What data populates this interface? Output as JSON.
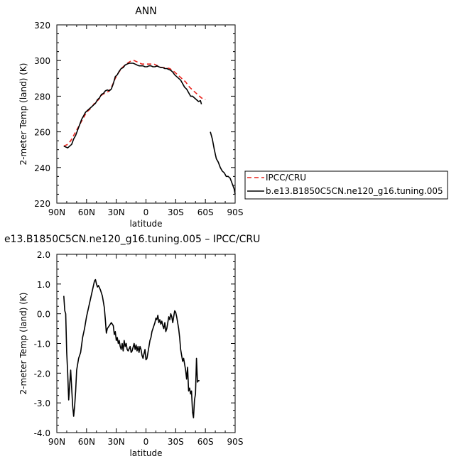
{
  "chart_data": [
    {
      "type": "line",
      "title": "ANN",
      "xlabel": "latitude",
      "ylabel": "2-meter Temp (land) (K)",
      "xlim": [
        90,
        -90
      ],
      "ylim": [
        220,
        320
      ],
      "x_tick_values": [
        90,
        60,
        30,
        0,
        -30,
        -60,
        -90
      ],
      "x_tick_labels": [
        "90N",
        "60N",
        "30N",
        "0",
        "30S",
        "60S",
        "90S"
      ],
      "y_tick_values": [
        220,
        240,
        260,
        280,
        300,
        320
      ],
      "y_tick_labels": [
        "220",
        "240",
        "260",
        "280",
        "300",
        "320"
      ],
      "legend_position": "bottom-right, outside plot",
      "series": [
        {
          "name": "IPCC/CRU",
          "color": "#e8201a",
          "dash": "dashed",
          "points": [
            [
              83,
              252
            ],
            [
              79,
              253
            ],
            [
              76,
              255
            ],
            [
              72,
              259
            ],
            [
              68,
              263
            ],
            [
              64,
              267
            ],
            [
              60,
              271
            ],
            [
              56,
              273
            ],
            [
              52,
              276
            ],
            [
              48,
              278
            ],
            [
              44,
              281
            ],
            [
              40,
              282
            ],
            [
              37,
              283
            ],
            [
              34,
              286
            ],
            [
              31,
              290
            ],
            [
              28,
              293
            ],
            [
              24,
              296
            ],
            [
              20,
              298
            ],
            [
              16,
              299.5
            ],
            [
              12,
              300
            ],
            [
              8,
              299
            ],
            [
              4,
              298
            ],
            [
              0,
              298
            ],
            [
              -4,
              298
            ],
            [
              -8,
              298
            ],
            [
              -12,
              297
            ],
            [
              -16,
              296
            ],
            [
              -20,
              296
            ],
            [
              -24,
              295.5
            ],
            [
              -28,
              294
            ],
            [
              -32,
              292
            ],
            [
              -36,
              290
            ],
            [
              -40,
              288
            ],
            [
              -44,
              285
            ],
            [
              -48,
              283
            ],
            [
              -52,
              281
            ],
            [
              -56,
              279
            ],
            [
              -60,
              278
            ]
          ]
        },
        {
          "name": "b.e13.B1850C5CN.ne120_g16.tuning.005",
          "color": "#000000",
          "dash": "solid",
          "segments": [
            [
              [
                83,
                252
              ],
              [
                81,
                251.5
              ],
              [
                79,
                251
              ],
              [
                77,
                252
              ],
              [
                75,
                253
              ],
              [
                73,
                256
              ],
              [
                71,
                258
              ],
              [
                69,
                261
              ],
              [
                67,
                264
              ],
              [
                65,
                267
              ],
              [
                63,
                269
              ],
              [
                61,
                271
              ],
              [
                59,
                272
              ],
              [
                57,
                273
              ],
              [
                55,
                274
              ],
              [
                53,
                275
              ],
              [
                51,
                276
              ],
              [
                49,
                278
              ],
              [
                47,
                279
              ],
              [
                45,
                281
              ],
              [
                43,
                281.5
              ],
              [
                41,
                283
              ],
              [
                39,
                283.5
              ],
              [
                37,
                283
              ],
              [
                35,
                284
              ],
              [
                33,
                287
              ],
              [
                31,
                291
              ],
              [
                29,
                292
              ],
              [
                27,
                294
              ],
              [
                25,
                295.5
              ],
              [
                23,
                296
              ],
              [
                21,
                297.5
              ],
              [
                19,
                298
              ],
              [
                17,
                298.5
              ],
              [
                15,
                298.5
              ],
              [
                13,
                298.5
              ],
              [
                11,
                298
              ],
              [
                9,
                297.5
              ],
              [
                7,
                297
              ],
              [
                5,
                297
              ],
              [
                3,
                297
              ],
              [
                1,
                296.5
              ],
              [
                -1,
                296.5
              ],
              [
                -3,
                297
              ],
              [
                -5,
                297
              ],
              [
                -7,
                296.5
              ],
              [
                -9,
                296.5
              ],
              [
                -11,
                297
              ],
              [
                -13,
                296.5
              ],
              [
                -15,
                296
              ],
              [
                -17,
                296
              ],
              [
                -19,
                295.5
              ],
              [
                -21,
                295.5
              ],
              [
                -23,
                295
              ],
              [
                -25,
                294.5
              ],
              [
                -27,
                293.5
              ],
              [
                -29,
                292
              ],
              [
                -31,
                291
              ],
              [
                -33,
                290
              ],
              [
                -35,
                289
              ],
              [
                -37,
                287
              ],
              [
                -39,
                285
              ],
              [
                -41,
                284
              ],
              [
                -43,
                282
              ],
              [
                -45,
                280
              ],
              [
                -47,
                280
              ],
              [
                -49,
                279
              ],
              [
                -51,
                278
              ],
              [
                -53,
                277
              ],
              [
                -55,
                277.5
              ],
              [
                -56,
                275.5
              ]
            ],
            [
              [
                -65,
                260
              ],
              [
                -67,
                256
              ],
              [
                -69,
                250
              ],
              [
                -71,
                245
              ],
              [
                -73,
                243
              ],
              [
                -75,
                240
              ],
              [
                -77,
                238
              ],
              [
                -79,
                237
              ],
              [
                -81,
                235
              ],
              [
                -83,
                235
              ],
              [
                -85,
                234
              ],
              [
                -87,
                231
              ],
              [
                -89,
                228
              ],
              [
                -90,
                225
              ]
            ]
          ]
        }
      ]
    },
    {
      "type": "line",
      "title": "e13.B1850C5CN.ne120_g16.tuning.005 – IPCC/CRU",
      "xlabel": "latitude",
      "ylabel": "2-meter Temp (land) (K)",
      "xlim": [
        90,
        -90
      ],
      "ylim": [
        -4.0,
        2.0
      ],
      "x_tick_values": [
        90,
        60,
        30,
        0,
        -30,
        -60,
        -90
      ],
      "x_tick_labels": [
        "90N",
        "60N",
        "30N",
        "0",
        "30S",
        "60S",
        "90S"
      ],
      "y_tick_values": [
        -4.0,
        -3.0,
        -2.0,
        -1.0,
        0.0,
        1.0,
        2.0
      ],
      "y_tick_labels": [
        "-4.0",
        "-3.0",
        "-2.0",
        "-1.0",
        "0.0",
        "1.0",
        "2.0"
      ],
      "series": [
        {
          "color": "#000000",
          "points": [
            [
              83,
              0.6
            ],
            [
              82,
              0.1
            ],
            [
              81,
              0.0
            ],
            [
              80,
              -1.3
            ],
            [
              79,
              -2.0
            ],
            [
              78,
              -2.9
            ],
            [
              77,
              -2.4
            ],
            [
              76,
              -1.9
            ],
            [
              75,
              -2.5
            ],
            [
              74,
              -3.1
            ],
            [
              73,
              -3.45
            ],
            [
              72,
              -3.1
            ],
            [
              71,
              -2.6
            ],
            [
              70,
              -1.9
            ],
            [
              68,
              -1.5
            ],
            [
              66,
              -1.3
            ],
            [
              64,
              -0.8
            ],
            [
              62,
              -0.5
            ],
            [
              60,
              -0.1
            ],
            [
              58,
              0.2
            ],
            [
              56,
              0.5
            ],
            [
              54,
              0.8
            ],
            [
              52,
              1.1
            ],
            [
              51,
              1.15
            ],
            [
              50,
              1.0
            ],
            [
              49,
              0.9
            ],
            [
              48,
              0.95
            ],
            [
              46,
              0.8
            ],
            [
              44,
              0.6
            ],
            [
              42,
              0.2
            ],
            [
              41,
              -0.2
            ],
            [
              40,
              -0.65
            ],
            [
              39,
              -0.5
            ],
            [
              37,
              -0.4
            ],
            [
              35,
              -0.3
            ],
            [
              33,
              -0.4
            ],
            [
              32,
              -0.7
            ],
            [
              31,
              -0.6
            ],
            [
              30,
              -0.9
            ],
            [
              29,
              -0.8
            ],
            [
              28,
              -1.0
            ],
            [
              27,
              -0.9
            ],
            [
              26,
              -1.1
            ],
            [
              25,
              -1.2
            ],
            [
              24,
              -1.0
            ],
            [
              23,
              -1.25
            ],
            [
              22,
              -0.9
            ],
            [
              21,
              -1.1
            ],
            [
              20,
              -1.0
            ],
            [
              19,
              -1.2
            ],
            [
              18,
              -1.25
            ],
            [
              16,
              -1.1
            ],
            [
              15,
              -1.3
            ],
            [
              14,
              -1.25
            ],
            [
              12,
              -1.0
            ],
            [
              11,
              -1.2
            ],
            [
              10,
              -1.05
            ],
            [
              9,
              -1.25
            ],
            [
              8,
              -1.1
            ],
            [
              7,
              -1.3
            ],
            [
              6,
              -1.1
            ],
            [
              5,
              -1.2
            ],
            [
              4,
              -1.4
            ],
            [
              3,
              -1.5
            ],
            [
              2,
              -1.35
            ],
            [
              1,
              -1.2
            ],
            [
              0,
              -1.55
            ],
            [
              -1,
              -1.5
            ],
            [
              -2,
              -1.3
            ],
            [
              -3,
              -1.1
            ],
            [
              -4,
              -0.9
            ],
            [
              -5,
              -0.8
            ],
            [
              -6,
              -0.6
            ],
            [
              -7,
              -0.5
            ],
            [
              -8,
              -0.4
            ],
            [
              -9,
              -0.3
            ],
            [
              -10,
              -0.15
            ],
            [
              -11,
              -0.2
            ],
            [
              -12,
              -0.05
            ],
            [
              -13,
              -0.3
            ],
            [
              -14,
              -0.2
            ],
            [
              -15,
              -0.35
            ],
            [
              -16,
              -0.25
            ],
            [
              -17,
              -0.4
            ],
            [
              -18,
              -0.5
            ],
            [
              -19,
              -0.3
            ],
            [
              -20,
              -0.6
            ],
            [
              -21,
              -0.5
            ],
            [
              -22,
              -0.3
            ],
            [
              -23,
              -0.1
            ],
            [
              -24,
              -0.2
            ],
            [
              -25,
              0.0
            ],
            [
              -26,
              -0.1
            ],
            [
              -27,
              -0.3
            ],
            [
              -28,
              -0.1
            ],
            [
              -29,
              0.1
            ],
            [
              -30,
              0.05
            ],
            [
              -31,
              -0.1
            ],
            [
              -32,
              -0.3
            ],
            [
              -33,
              -0.5
            ],
            [
              -34,
              -0.8
            ],
            [
              -35,
              -1.2
            ],
            [
              -36,
              -1.4
            ],
            [
              -37,
              -1.6
            ],
            [
              -38,
              -1.5
            ],
            [
              -39,
              -1.7
            ],
            [
              -40,
              -1.9
            ],
            [
              -41,
              -2.2
            ],
            [
              -42,
              -1.8
            ],
            [
              -43,
              -2.6
            ],
            [
              -44,
              -2.5
            ],
            [
              -45,
              -2.7
            ],
            [
              -46,
              -2.6
            ],
            [
              -47,
              -3.3
            ],
            [
              -48,
              -3.5
            ],
            [
              -49,
              -2.9
            ],
            [
              -50,
              -2.7
            ],
            [
              -51,
              -1.5
            ],
            [
              -52,
              -2.3
            ],
            [
              -53,
              -2.25
            ],
            [
              -54,
              -2.25
            ]
          ]
        }
      ]
    }
  ]
}
